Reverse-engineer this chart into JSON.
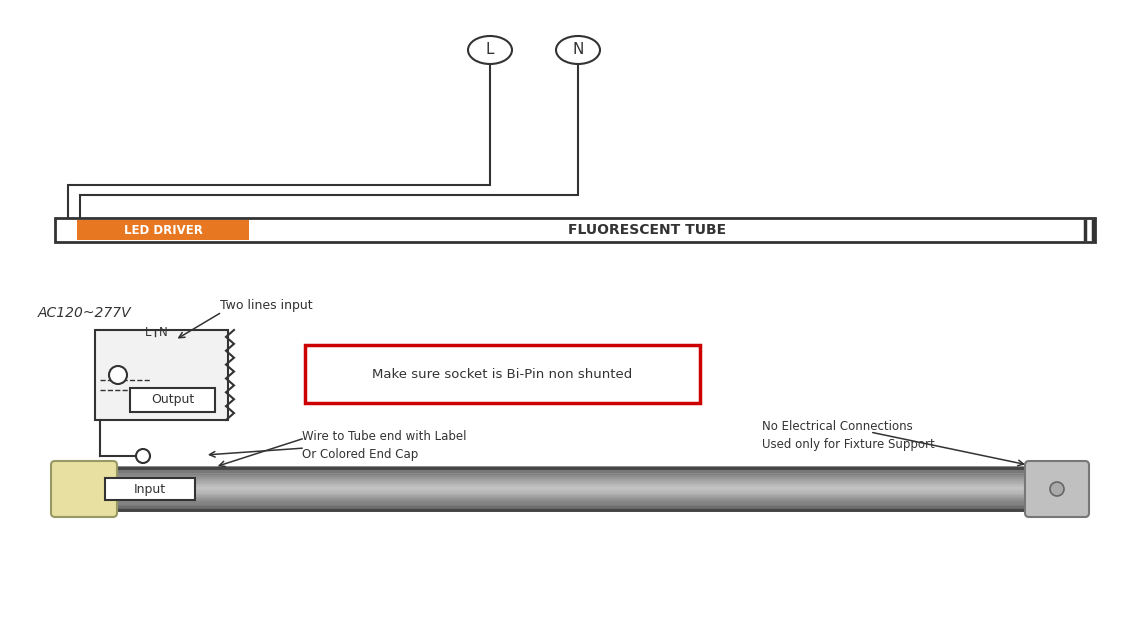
{
  "bg_color": "#ffffff",
  "line_color": "#555555",
  "orange_color": "#E87722",
  "led_driver_text": "LED DRIVER",
  "fluor_tube_text": "FLUORESCENT TUBE",
  "L_label": "L",
  "N_label": "N",
  "ac_voltage_text": "AC120~277V",
  "two_lines_text": "Two lines input",
  "output_text": "Output",
  "input_text": "Input",
  "bi_pin_text": "Make sure socket is Bi-Pin non shunted",
  "wire_label_text": "Wire to Tube end with Label\nOr Colored End Cap",
  "no_elec_text": "No Electrical Connections\nUsed only for Fixture Support",
  "red_box_color": "#CC0000",
  "dark_color": "#333333",
  "gray_color": "#888888"
}
